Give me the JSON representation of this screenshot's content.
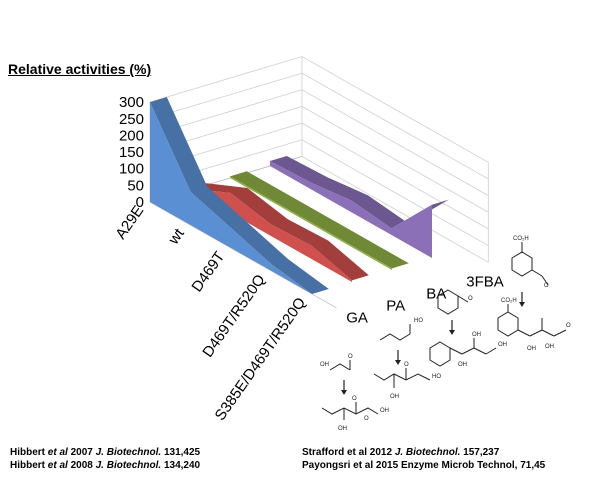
{
  "chart_data": {
    "type": "area",
    "projection": "3d-ribbon",
    "title": "Relative activities (%)",
    "ylim": [
      0,
      300
    ],
    "yticks": [
      "0",
      "50",
      "100",
      "150",
      "200",
      "250",
      "300"
    ],
    "enzymes": [
      "A29E",
      "wt",
      "D469T",
      "D469T/R520Q",
      "S385E/D469T/R520Q"
    ],
    "series": [
      {
        "name": "GA",
        "values": [
          300,
          100,
          60,
          20,
          0
        ],
        "color": "#5b8fd4"
      },
      {
        "name": "PA",
        "values": [
          5,
          60,
          35,
          40,
          5
        ],
        "color": "#d0504d"
      },
      {
        "name": "BA",
        "values": [
          5,
          5,
          5,
          5,
          5
        ],
        "color": "#8fb045"
      },
      {
        "name": "3FBA",
        "values": [
          15,
          20,
          35,
          20,
          160
        ],
        "color": "#8b70b8"
      }
    ],
    "grid": true,
    "legend": "none"
  },
  "references": {
    "left": [
      {
        "authors": "Hibbert ",
        "etal": "et al",
        "year": " 2007 ",
        "journal": "J. Biotechnol.",
        "rest": " 131,425"
      },
      {
        "authors": "Hibbert ",
        "etal": "et al",
        "year": " 2008 ",
        "journal": "J. Biotechnol.",
        "rest": " 134,240"
      }
    ],
    "right": [
      {
        "authors": "Strafford et al 2012  ",
        "journal": "J. Biotechnol.",
        "rest": " 157,237"
      },
      {
        "authors": "Payongsri et al 2015  Enzyme Microb Technol, 71,45"
      }
    ]
  },
  "structures": {
    "labels": [
      "CO₂H",
      "O",
      "CO₂H",
      "O",
      "OH",
      "OH",
      "O",
      "OH",
      "OH",
      "OH",
      "HO",
      "O",
      "HO",
      "OH",
      "OH",
      "O",
      "O",
      "OH",
      "OH",
      "O",
      "OH",
      "OH"
    ]
  }
}
